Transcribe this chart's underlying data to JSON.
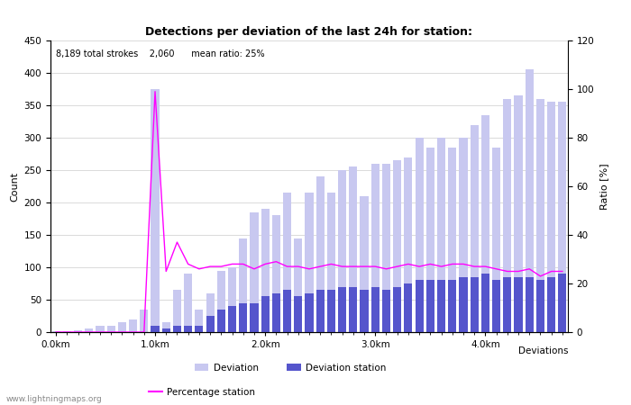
{
  "title": "Detections per deviation of the last 24h for station:",
  "subtitle": "8,189 total strokes    2,060      mean ratio: 25%",
  "xlabel": "Deviations",
  "ylabel_left": "Count",
  "ylabel_right": "Ratio [%]",
  "watermark": "www.lightningmaps.org",
  "ylim_left": [
    0,
    450
  ],
  "ylim_right": [
    0,
    120
  ],
  "yticks_left": [
    0,
    50,
    100,
    150,
    200,
    250,
    300,
    350,
    400,
    450
  ],
  "yticks_right": [
    0,
    20,
    40,
    60,
    80,
    100,
    120
  ],
  "x_tick_labels": [
    "0.0km",
    "1.0km",
    "2.0km",
    "3.0km",
    "4.0km"
  ],
  "x_tick_positions": [
    0,
    9,
    19,
    29,
    39
  ],
  "bar_width": 0.75,
  "deviation_bars": [
    2,
    2,
    3,
    5,
    10,
    10,
    15,
    20,
    35,
    375,
    15,
    65,
    90,
    35,
    60,
    95,
    100,
    145,
    185,
    190,
    180,
    215,
    145,
    215,
    240,
    215,
    250,
    255,
    210,
    260,
    260,
    265,
    270,
    300,
    285,
    300,
    285,
    300,
    320,
    335,
    285,
    360,
    365,
    405,
    360,
    355,
    355
  ],
  "station_bars": [
    0,
    0,
    0,
    0,
    0,
    0,
    0,
    0,
    0,
    10,
    5,
    10,
    10,
    10,
    25,
    35,
    40,
    45,
    45,
    55,
    60,
    65,
    55,
    60,
    65,
    65,
    70,
    70,
    65,
    70,
    65,
    70,
    75,
    80,
    80,
    80,
    80,
    85,
    85,
    90,
    80,
    85,
    85,
    85,
    80,
    85,
    90
  ],
  "percentage_line": [
    0,
    0,
    0,
    0,
    0,
    0,
    0,
    0,
    0,
    99,
    25,
    37,
    28,
    26,
    27,
    27,
    28,
    28,
    26,
    28,
    29,
    27,
    27,
    26,
    27,
    28,
    27,
    27,
    27,
    27,
    26,
    27,
    28,
    27,
    28,
    27,
    28,
    28,
    27,
    27,
    26,
    25,
    25,
    26,
    23,
    25,
    25
  ],
  "color_deviation": "#c8c8f0",
  "color_station": "#5555cc",
  "color_percentage": "#ff00ff",
  "legend_deviation": "Deviation",
  "legend_station": "Deviation station",
  "legend_percentage": "Percentage station",
  "background_color": "#ffffff",
  "grid_color": "#cccccc"
}
